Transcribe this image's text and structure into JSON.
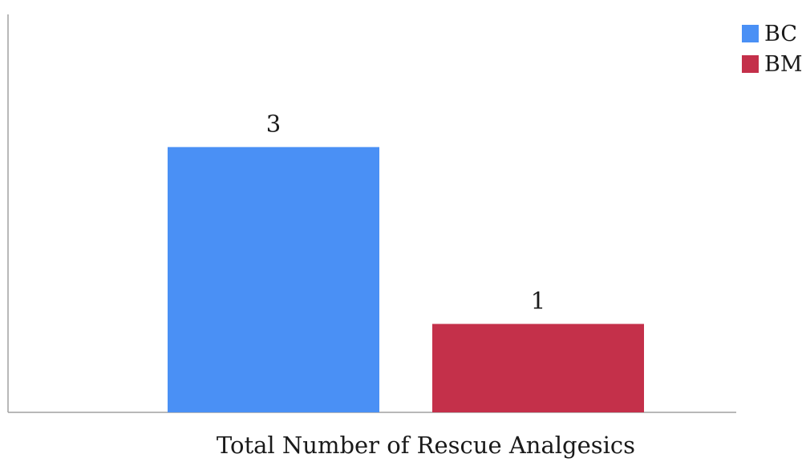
{
  "chart_data": {
    "type": "bar",
    "categories": [
      "Total Number of Rescue Analgesics"
    ],
    "series": [
      {
        "name": "BC",
        "values": [
          3
        ],
        "color": "#4a90f5"
      },
      {
        "name": "BM",
        "values": [
          1
        ],
        "color": "#c4304a"
      }
    ],
    "data_labels": [
      "3",
      "1"
    ],
    "xlabel": "Total Number of Rescue Analgesics",
    "ylim": [
      0,
      4.5
    ],
    "grid": false,
    "legend_position": "top-right",
    "axis_color": "#a0a0a0"
  }
}
